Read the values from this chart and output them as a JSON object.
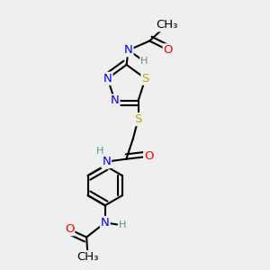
{
  "background_color": "#efefef",
  "atom_colors": {
    "C": "#000000",
    "H": "#5a9090",
    "N": "#0000ff",
    "O": "#ff0000",
    "S": "#bbaa00"
  },
  "bond_color": "#000000",
  "bond_width": 1.5,
  "font_size_atom": 9.5,
  "font_size_H": 8.0
}
